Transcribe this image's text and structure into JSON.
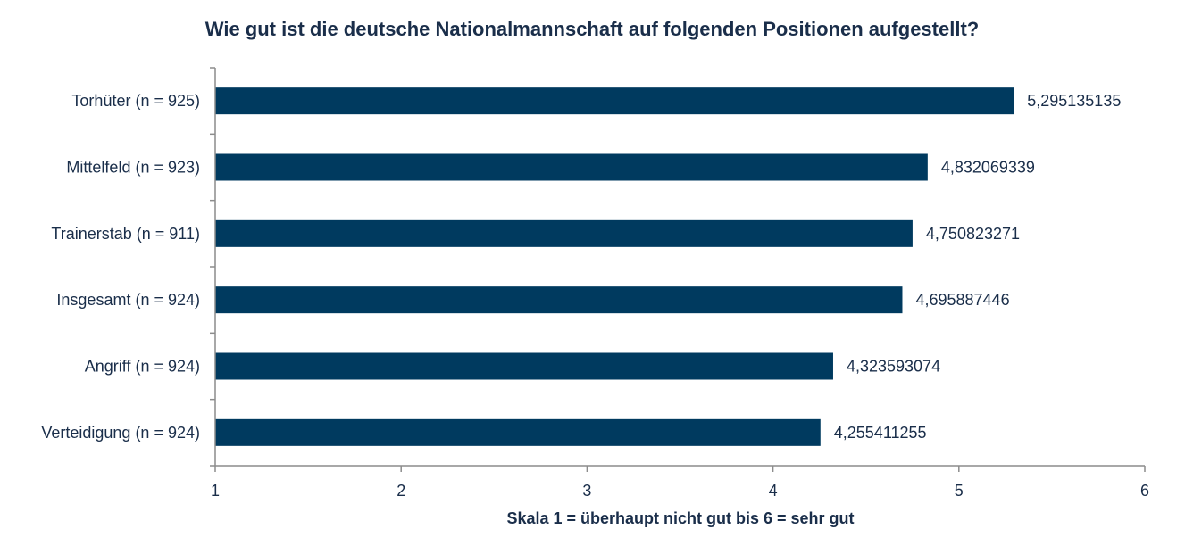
{
  "chart_data": {
    "type": "bar",
    "orientation": "horizontal",
    "title": "Wie gut ist die deutsche Nationalmannschaft auf folgenden Positionen aufgestellt?",
    "xlabel": "Skala 1 = überhaupt nicht gut bis 6 = sehr gut",
    "ylabel": "",
    "xlim": [
      1,
      6
    ],
    "x_ticks": [
      "1",
      "2",
      "3",
      "4",
      "5",
      "6"
    ],
    "grid": false,
    "legend": "none",
    "bar_color": "#003a5f",
    "categories": [
      "Torhüter (n = 925)",
      "Mittelfeld (n = 923)",
      "Trainerstab (n = 911)",
      "Insgesamt (n = 924)",
      "Angriff (n = 924)",
      "Verteidigung (n = 924)"
    ],
    "values": [
      5.295135135,
      4.832069339,
      4.750823271,
      4.695887446,
      4.323593074,
      4.255411255
    ],
    "value_labels": [
      "5,295135135",
      "4,832069339",
      "4,750823271",
      "4,695887446",
      "4,323593074",
      "4,255411255"
    ]
  }
}
